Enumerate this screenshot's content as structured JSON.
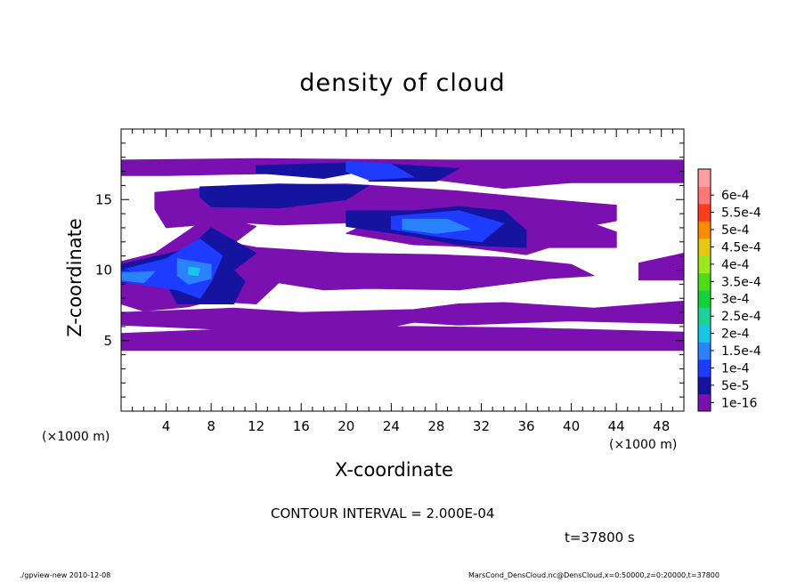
{
  "chart_data": {
    "type": "heatmap",
    "title": "density of cloud",
    "xlabel": "X-coordinate",
    "ylabel": "Z-coordinate",
    "x_unit": "(×1000 m)",
    "y_unit": "(×1000 m)",
    "xlim": [
      0,
      50
    ],
    "ylim": [
      0,
      20
    ],
    "x_ticks": [
      4,
      8,
      12,
      16,
      20,
      24,
      28,
      32,
      36,
      40,
      44,
      48
    ],
    "y_ticks": [
      5,
      10,
      15
    ],
    "colorbar": {
      "labels": [
        "1e-16",
        "5e-5",
        "1e-4",
        "1.5e-4",
        "2e-4",
        "2.5e-4",
        "3e-4",
        "3.5e-4",
        "4e-4",
        "4.5e-4",
        "5e-4",
        "5.5e-4",
        "6e-4"
      ],
      "colors": [
        "#7a10b0",
        "#1414a0",
        "#1e3cff",
        "#2a82ff",
        "#14c8e6",
        "#1ed296",
        "#14d23c",
        "#50dc14",
        "#a0e61e",
        "#e6c814",
        "#ff8c00",
        "#ff3c1e",
        "#ff7878",
        "#ffa0a0"
      ]
    },
    "regions": [
      {
        "level": 0,
        "polygon": [
          [
            0,
            17.8
          ],
          [
            12,
            17.9
          ],
          [
            30,
            17.8
          ],
          [
            50,
            17.8
          ],
          [
            50,
            16.2
          ],
          [
            40,
            16.2
          ],
          [
            34,
            15.8
          ],
          [
            28,
            16.4
          ],
          [
            20,
            16.9
          ],
          [
            10,
            16.8
          ],
          [
            4,
            16.7
          ],
          [
            0,
            16.7
          ]
        ]
      },
      {
        "level": 0,
        "polygon": [
          [
            3,
            15.5
          ],
          [
            10,
            16.0
          ],
          [
            20,
            16.1
          ],
          [
            30,
            15.6
          ],
          [
            38,
            15.0
          ],
          [
            44,
            14.6
          ],
          [
            44,
            13.5
          ],
          [
            38,
            12.6
          ],
          [
            36,
            12.2
          ],
          [
            30,
            13.2
          ],
          [
            22,
            13.4
          ],
          [
            14,
            13.2
          ],
          [
            10,
            13.4
          ],
          [
            4,
            13.0
          ],
          [
            3,
            14.3
          ]
        ]
      },
      {
        "level": 0,
        "polygon": [
          [
            24,
            14.1
          ],
          [
            30,
            14.6
          ],
          [
            38,
            14.4
          ],
          [
            44,
            12.7
          ],
          [
            44,
            11.6
          ],
          [
            38,
            11.6
          ],
          [
            36,
            11.1
          ],
          [
            30,
            11.7
          ],
          [
            26,
            11.8
          ],
          [
            20,
            12.6
          ]
        ]
      },
      {
        "level": 0,
        "polygon": [
          [
            0,
            10.6
          ],
          [
            3,
            11.2
          ],
          [
            8,
            13.9
          ],
          [
            12,
            13.1
          ],
          [
            10,
            11.9
          ],
          [
            12,
            11.6
          ],
          [
            20,
            11.2
          ],
          [
            28,
            11.1
          ],
          [
            34,
            10.9
          ],
          [
            40,
            10.4
          ],
          [
            42,
            9.6
          ],
          [
            38,
            9.4
          ],
          [
            30,
            8.6
          ],
          [
            22,
            8.7
          ],
          [
            18,
            8.6
          ],
          [
            14,
            9.1
          ],
          [
            12,
            7.6
          ],
          [
            8,
            7.8
          ],
          [
            6,
            7.4
          ],
          [
            2,
            7.1
          ],
          [
            0,
            7.6
          ]
        ]
      },
      {
        "level": 0,
        "polygon": [
          [
            0,
            7.0
          ],
          [
            10,
            7.3
          ],
          [
            16,
            7.0
          ],
          [
            26,
            7.2
          ],
          [
            30,
            7.6
          ],
          [
            34,
            7.7
          ],
          [
            42,
            7.3
          ],
          [
            50,
            7.8
          ],
          [
            50,
            6.2
          ],
          [
            40,
            6.4
          ],
          [
            30,
            6.1
          ],
          [
            26,
            6.3
          ],
          [
            20,
            5.3
          ],
          [
            12,
            5.7
          ],
          [
            0,
            6.1
          ]
        ]
      },
      {
        "level": 0,
        "polygon": [
          [
            0,
            5.5
          ],
          [
            12,
            5.9
          ],
          [
            26,
            6.0
          ],
          [
            36,
            5.9
          ],
          [
            50,
            5.6
          ],
          [
            50,
            4.3
          ],
          [
            0,
            4.3
          ]
        ]
      },
      {
        "level": 0,
        "polygon": [
          [
            46,
            10.5
          ],
          [
            50,
            11.2
          ],
          [
            50,
            9.3
          ],
          [
            46,
            9.3
          ]
        ]
      },
      {
        "level": 1,
        "polygon": [
          [
            12,
            17.4
          ],
          [
            20,
            17.6
          ],
          [
            22,
            17.1
          ],
          [
            18,
            16.5
          ],
          [
            12,
            16.9
          ]
        ]
      },
      {
        "level": 1,
        "polygon": [
          [
            24,
            17.5
          ],
          [
            30,
            17.2
          ],
          [
            28,
            16.3
          ],
          [
            22,
            16.3
          ]
        ]
      },
      {
        "level": 1,
        "polygon": [
          [
            7,
            15.9
          ],
          [
            14,
            16.1
          ],
          [
            22,
            16.0
          ],
          [
            20,
            15.0
          ],
          [
            14,
            14.4
          ],
          [
            8,
            14.5
          ],
          [
            7,
            15.2
          ]
        ]
      },
      {
        "level": 1,
        "polygon": [
          [
            20,
            14.2
          ],
          [
            26,
            14.2
          ],
          [
            30,
            14.5
          ],
          [
            34,
            14.2
          ],
          [
            36,
            12.8
          ],
          [
            36,
            11.6
          ],
          [
            30,
            11.8
          ],
          [
            26,
            12.4
          ],
          [
            20,
            13.1
          ]
        ]
      },
      {
        "level": 1,
        "polygon": [
          [
            0,
            10.4
          ],
          [
            6,
            11.5
          ],
          [
            8,
            13.0
          ],
          [
            12,
            11.2
          ],
          [
            10,
            10.0
          ],
          [
            11,
            9.2
          ],
          [
            10,
            7.6
          ],
          [
            5,
            7.6
          ],
          [
            4,
            9.1
          ],
          [
            0,
            9.1
          ]
        ]
      },
      {
        "level": 2,
        "polygon": [
          [
            20,
            17.7
          ],
          [
            24,
            17.5
          ],
          [
            26,
            16.6
          ],
          [
            22,
            16.4
          ],
          [
            20,
            17.0
          ]
        ]
      },
      {
        "level": 2,
        "polygon": [
          [
            24,
            13.8
          ],
          [
            30,
            14.2
          ],
          [
            34,
            13.3
          ],
          [
            32,
            12.0
          ],
          [
            28,
            12.4
          ],
          [
            24,
            12.9
          ]
        ]
      },
      {
        "level": 2,
        "polygon": [
          [
            0,
            10.0
          ],
          [
            4,
            10.8
          ],
          [
            7,
            12.2
          ],
          [
            9,
            11.0
          ],
          [
            8,
            9.2
          ],
          [
            7,
            8.0
          ],
          [
            5,
            8.6
          ],
          [
            0,
            9.2
          ]
        ]
      },
      {
        "level": 3,
        "polygon": [
          [
            25,
            13.6
          ],
          [
            29,
            13.6
          ],
          [
            31,
            12.9
          ],
          [
            28,
            12.6
          ],
          [
            25,
            12.9
          ]
        ]
      },
      {
        "level": 3,
        "polygon": [
          [
            5,
            10.8
          ],
          [
            8,
            10.4
          ],
          [
            8,
            9.4
          ],
          [
            6,
            9.0
          ],
          [
            5,
            9.6
          ]
        ]
      },
      {
        "level": 3,
        "polygon": [
          [
            0,
            9.8
          ],
          [
            3,
            9.9
          ],
          [
            2,
            9.1
          ],
          [
            0,
            9.3
          ]
        ]
      },
      {
        "level": 4,
        "polygon": [
          [
            6,
            10.2
          ],
          [
            7,
            10.1
          ],
          [
            6.8,
            9.6
          ],
          [
            6,
            9.7
          ]
        ]
      }
    ]
  },
  "text": {
    "x_unit": "(×1000 m)",
    "contour_interval": "CONTOUR INTERVAL = 2.000E-04",
    "time": "t=37800  s",
    "footer_left": "./gpview-new  2010-12-08",
    "footer_right": "MarsCond_DensCloud.nc@DensCloud,x=0:50000,z=0:20000,t=37800"
  }
}
